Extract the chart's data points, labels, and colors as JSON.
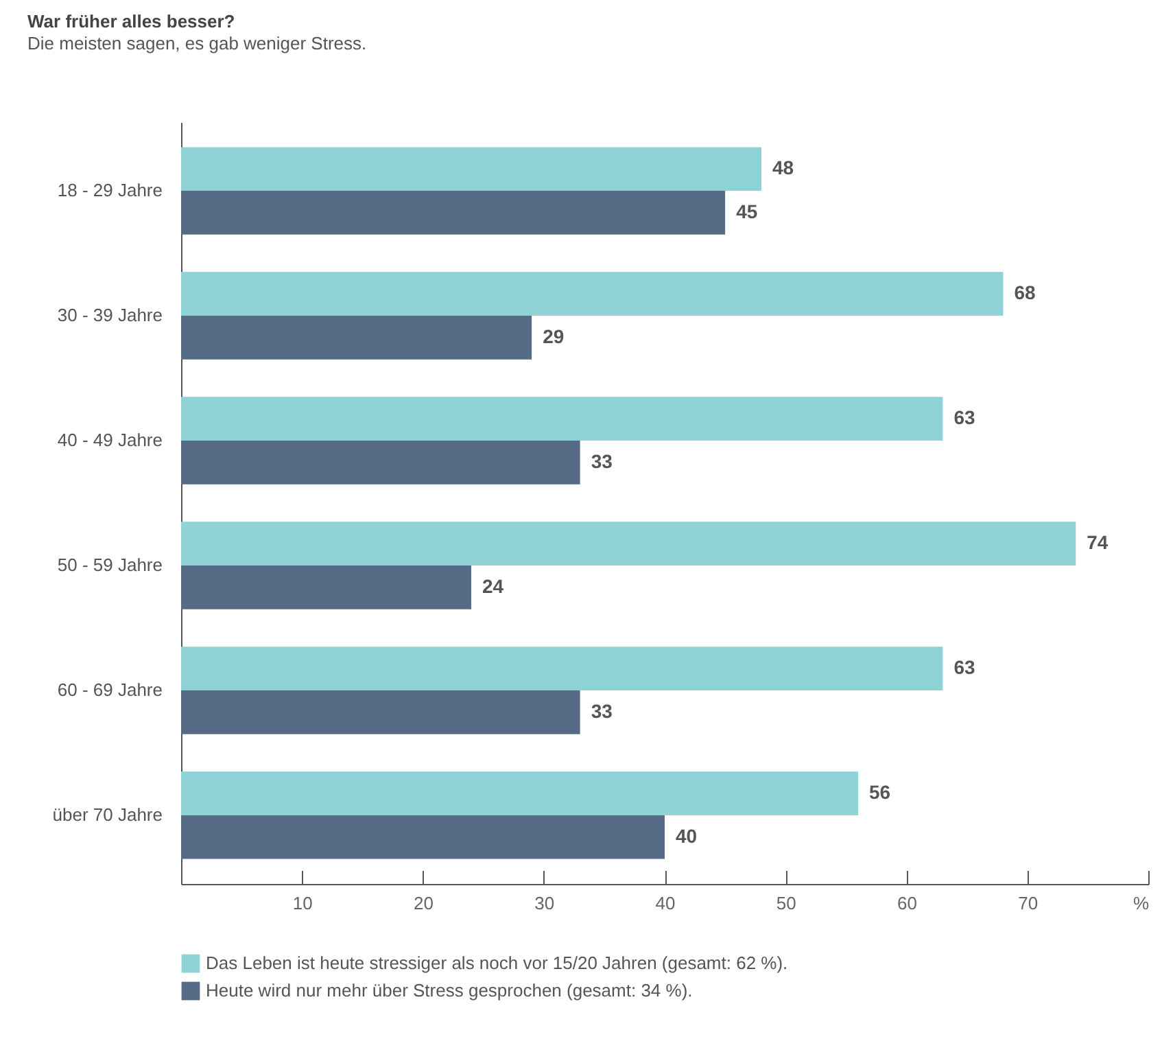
{
  "chart_data": {
    "type": "bar",
    "orientation": "horizontal",
    "title": "War früher alles besser?",
    "subtitle": "Die meisten sagen, es gab weniger Stress.",
    "categories": [
      "18 - 29 Jahre",
      "30 - 39 Jahre",
      "40 - 49 Jahre",
      "50 - 59 Jahre",
      "60 - 69 Jahre",
      "über 70 Jahre"
    ],
    "series": [
      {
        "name": "Das Leben ist heute stressiger als noch vor 15/20 Jahren (gesamt: 62 %).",
        "color": "#8fd3d6",
        "values": [
          48,
          68,
          63,
          74,
          63,
          56
        ]
      },
      {
        "name": "Heute wird nur mehr über Stress gesprochen (gesamt: 34 %).",
        "color": "#566b86",
        "values": [
          45,
          29,
          33,
          24,
          33,
          40
        ]
      }
    ],
    "xlim": [
      0,
      80
    ],
    "xticks": [
      10,
      20,
      30,
      40,
      50,
      60,
      70,
      {
        "value": 80,
        "label": "%"
      }
    ],
    "data_labels": true,
    "grid": false,
    "legend": "bottom left"
  }
}
